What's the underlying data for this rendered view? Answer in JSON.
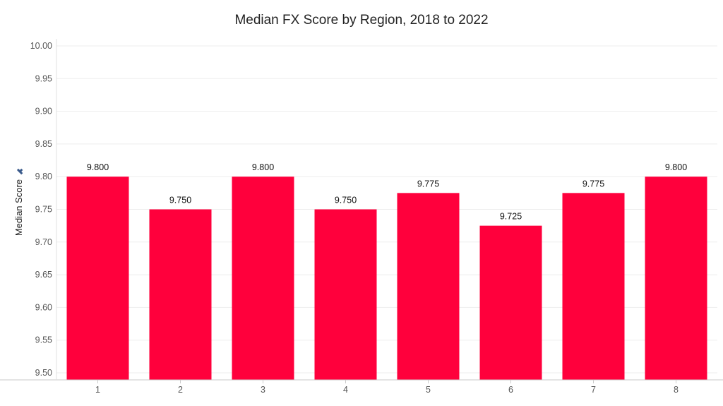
{
  "chart_data": {
    "type": "bar",
    "title": "Median FX Score by Region, 2018 to 2022",
    "xlabel": "",
    "ylabel": "Median Score",
    "categories": [
      "1",
      "2",
      "3",
      "4",
      "5",
      "6",
      "7",
      "8"
    ],
    "values": [
      9.8,
      9.75,
      9.8,
      9.75,
      9.775,
      9.725,
      9.775,
      9.8
    ],
    "value_labels": [
      "9.800",
      "9.750",
      "9.800",
      "9.750",
      "9.775",
      "9.725",
      "9.775",
      "9.800"
    ],
    "ylim": [
      9.5,
      10.0
    ],
    "yticks": [
      "10.00",
      "9.95",
      "9.90",
      "9.85",
      "9.80",
      "9.75",
      "9.70",
      "9.65",
      "9.60",
      "9.55",
      "9.50"
    ],
    "grid": true,
    "bar_color": "#ff003c",
    "ylabel_icon": "pin-icon"
  }
}
